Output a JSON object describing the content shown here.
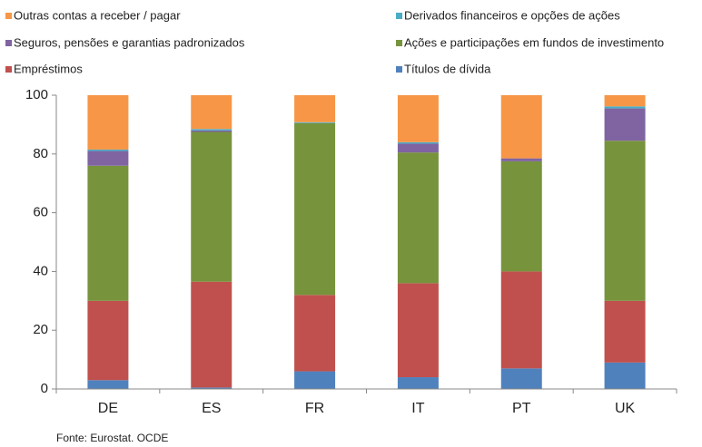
{
  "chart_data": {
    "type": "stacked_bar",
    "categories": [
      "DE",
      "ES",
      "FR",
      "IT",
      "PT",
      "UK"
    ],
    "series": [
      {
        "name": "Títulos de dívida",
        "color": "#4f81bd",
        "values": [
          3,
          0.5,
          6,
          4,
          7,
          9
        ]
      },
      {
        "name": "Empréstimos",
        "color": "#c0504d",
        "values": [
          27,
          36,
          26,
          32,
          33,
          21
        ]
      },
      {
        "name": "Ações e participações em fundos de investimento",
        "color": "#77933c",
        "values": [
          46,
          51,
          58.5,
          44.5,
          37.5,
          54.5
        ]
      },
      {
        "name": "Seguros, pensões e garantias padronizados",
        "color": "#8064a2",
        "values": [
          5,
          0.5,
          0,
          3,
          1,
          11
        ]
      },
      {
        "name": "Derivados financeiros e opções de ações",
        "color": "#4bacc6",
        "values": [
          0.5,
          0.5,
          0.3,
          0.5,
          0,
          0.7
        ]
      },
      {
        "name": "Outras contas a receber / pagar",
        "color": "#f79646",
        "values": [
          18.5,
          11.5,
          9.2,
          16,
          21.5,
          3.8
        ]
      }
    ],
    "ylim": [
      0,
      100
    ],
    "yticks": [
      0,
      20,
      40,
      60,
      80,
      100
    ],
    "grid": false,
    "source": "Fonte: Eurostat. OCDE"
  }
}
